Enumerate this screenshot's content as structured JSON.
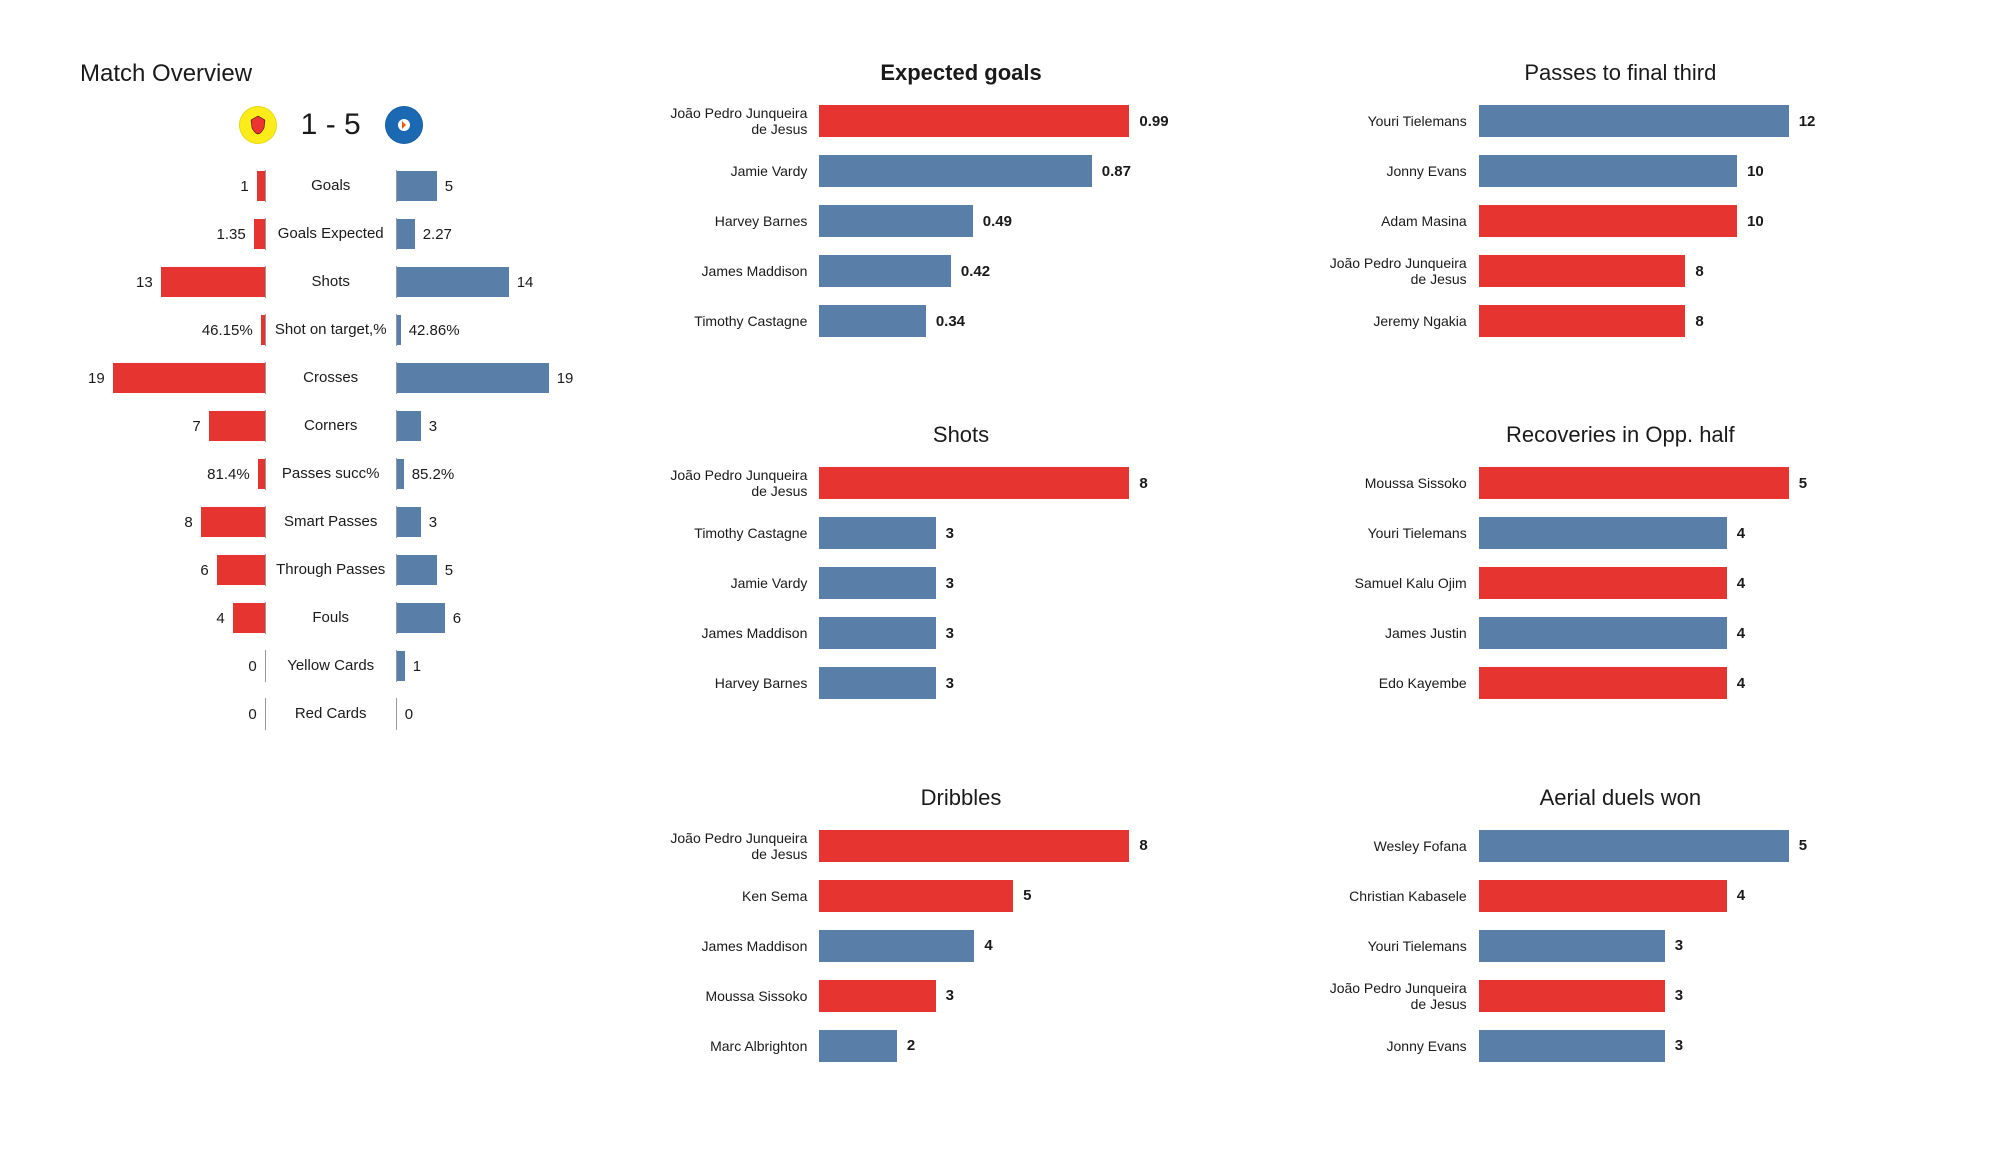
{
  "colors": {
    "home": "#e63431",
    "away": "#597ea7",
    "text": "#1a1a1a",
    "background": "#ffffff"
  },
  "overview": {
    "title": "Match Overview",
    "score_text": "1 - 5",
    "home_crest_bg": "#fbec1a",
    "away_crest_bg": "#1b68b3",
    "rows": [
      {
        "label": "Goals",
        "home": "1",
        "away": "5",
        "hw": 8,
        "aw": 40
      },
      {
        "label": "Goals Expected",
        "home": "1.35",
        "away": "2.27",
        "hw": 11,
        "aw": 18
      },
      {
        "label": "Shots",
        "home": "13",
        "away": "14",
        "hw": 104,
        "aw": 112
      },
      {
        "label": "Shot on target,%",
        "home": "46.15%",
        "away": "42.86%",
        "hw": 4,
        "aw": 4
      },
      {
        "label": "Crosses",
        "home": "19",
        "away": "19",
        "hw": 152,
        "aw": 152
      },
      {
        "label": "Corners",
        "home": "7",
        "away": "3",
        "hw": 56,
        "aw": 24
      },
      {
        "label": "Passes succ%",
        "home": "81.4%",
        "away": "85.2%",
        "hw": 7,
        "aw": 7
      },
      {
        "label": "Smart Passes",
        "home": "8",
        "away": "3",
        "hw": 64,
        "aw": 24
      },
      {
        "label": "Through Passes",
        "home": "6",
        "away": "5",
        "hw": 48,
        "aw": 40
      },
      {
        "label": "Fouls",
        "home": "4",
        "away": "6",
        "hw": 32,
        "aw": 48
      },
      {
        "label": "Yellow Cards",
        "home": "0",
        "away": "1",
        "hw": 0,
        "aw": 8
      },
      {
        "label": "Red Cards",
        "home": "0",
        "away": "0",
        "hw": 0,
        "aw": 0
      }
    ]
  },
  "panels": [
    {
      "title": "Expected goals",
      "bold": true,
      "max": 0.99,
      "rows": [
        {
          "label": "João Pedro Junqueira de Jesus",
          "val": "0.99",
          "num": 0.99,
          "team": "home"
        },
        {
          "label": "Jamie Vardy",
          "val": "0.87",
          "num": 0.87,
          "team": "away"
        },
        {
          "label": "Harvey Barnes",
          "val": "0.49",
          "num": 0.49,
          "team": "away"
        },
        {
          "label": "James Maddison",
          "val": "0.42",
          "num": 0.42,
          "team": "away"
        },
        {
          "label": "Timothy Castagne",
          "val": "0.34",
          "num": 0.34,
          "team": "away"
        }
      ]
    },
    {
      "title": "Passes to final third",
      "bold": false,
      "max": 12,
      "rows": [
        {
          "label": "Youri Tielemans",
          "val": "12",
          "num": 12,
          "team": "away"
        },
        {
          "label": "Jonny Evans",
          "val": "10",
          "num": 10,
          "team": "away"
        },
        {
          "label": "Adam Masina",
          "val": "10",
          "num": 10,
          "team": "home"
        },
        {
          "label": "João Pedro Junqueira de Jesus",
          "val": "8",
          "num": 8,
          "team": "home"
        },
        {
          "label": "Jeremy Ngakia",
          "val": "8",
          "num": 8,
          "team": "home"
        }
      ]
    },
    {
      "title": "Shots",
      "bold": false,
      "max": 8,
      "rows": [
        {
          "label": "João Pedro Junqueira de Jesus",
          "val": "8",
          "num": 8,
          "team": "home"
        },
        {
          "label": "Timothy Castagne",
          "val": "3",
          "num": 3,
          "team": "away"
        },
        {
          "label": "Jamie Vardy",
          "val": "3",
          "num": 3,
          "team": "away"
        },
        {
          "label": "James Maddison",
          "val": "3",
          "num": 3,
          "team": "away"
        },
        {
          "label": "Harvey Barnes",
          "val": "3",
          "num": 3,
          "team": "away"
        }
      ]
    },
    {
      "title": "Recoveries in Opp. half",
      "bold": false,
      "max": 5,
      "rows": [
        {
          "label": "Moussa Sissoko",
          "val": "5",
          "num": 5,
          "team": "home"
        },
        {
          "label": "Youri Tielemans",
          "val": "4",
          "num": 4,
          "team": "away"
        },
        {
          "label": "Samuel Kalu Ojim",
          "val": "4",
          "num": 4,
          "team": "home"
        },
        {
          "label": "James Justin",
          "val": "4",
          "num": 4,
          "team": "away"
        },
        {
          "label": "Edo Kayembe",
          "val": "4",
          "num": 4,
          "team": "home"
        }
      ]
    },
    {
      "title": "Dribbles",
      "bold": false,
      "max": 8,
      "rows": [
        {
          "label": "João Pedro Junqueira de Jesus",
          "val": "8",
          "num": 8,
          "team": "home"
        },
        {
          "label": "Ken Sema",
          "val": "5",
          "num": 5,
          "team": "home"
        },
        {
          "label": "James Maddison",
          "val": "4",
          "num": 4,
          "team": "away"
        },
        {
          "label": "Moussa Sissoko",
          "val": "3",
          "num": 3,
          "team": "home"
        },
        {
          "label": "Marc Albrighton",
          "val": "2",
          "num": 2,
          "team": "away"
        }
      ]
    },
    {
      "title": "Aerial duels won",
      "bold": false,
      "max": 5,
      "rows": [
        {
          "label": "Wesley Fofana",
          "val": "5",
          "num": 5,
          "team": "away"
        },
        {
          "label": "Christian Kabasele",
          "val": "4",
          "num": 4,
          "team": "home"
        },
        {
          "label": "Youri Tielemans",
          "val": "3",
          "num": 3,
          "team": "away"
        },
        {
          "label": "João Pedro Junqueira de Jesus",
          "val": "3",
          "num": 3,
          "team": "home"
        },
        {
          "label": "Jonny Evans",
          "val": "3",
          "num": 3,
          "team": "away"
        }
      ]
    }
  ]
}
